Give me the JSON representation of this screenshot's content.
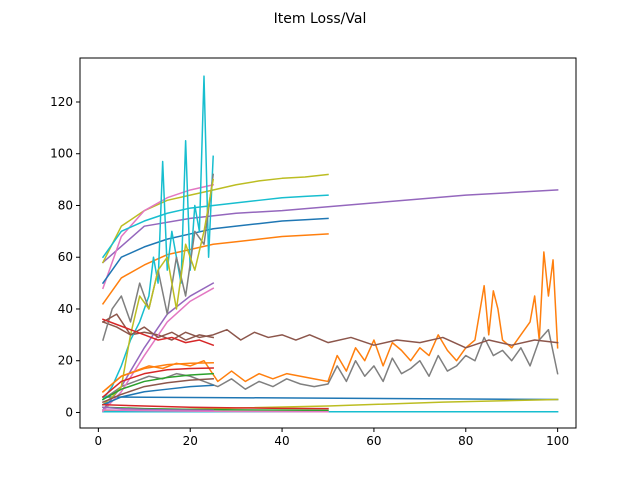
{
  "chart_data": {
    "type": "line",
    "title": "Item Loss/Val",
    "xlabel": "",
    "ylabel": "",
    "xlim": [
      -4,
      104
    ],
    "ylim": [
      -6,
      137
    ],
    "xticks": [
      0,
      20,
      40,
      60,
      80,
      100
    ],
    "yticks": [
      0,
      20,
      40,
      60,
      80,
      100,
      120
    ],
    "grid": false,
    "legend": "none",
    "series": [
      {
        "color": "#9467bd",
        "x": [
          1,
          10,
          20,
          30,
          40,
          50,
          60,
          70,
          80,
          90,
          100
        ],
        "y": [
          58,
          72,
          75,
          77,
          78,
          79.5,
          81,
          82.5,
          84,
          85,
          86
        ]
      },
      {
        "color": "#ff7f0e",
        "x": [
          1,
          5,
          8,
          11,
          14,
          17,
          20,
          23,
          26,
          29,
          32,
          35,
          38,
          41,
          44,
          47,
          50,
          52,
          54,
          56,
          58,
          60,
          62,
          64,
          66,
          68,
          70,
          72,
          74,
          76,
          78,
          80,
          82,
          84,
          85,
          86,
          87,
          88,
          90,
          92,
          94,
          95,
          96,
          97,
          98,
          99,
          100
        ],
        "y": [
          8,
          14,
          16,
          18,
          17,
          19,
          18,
          20,
          12,
          16,
          12,
          15,
          13,
          15,
          14,
          13,
          12,
          22,
          16,
          25,
          20,
          28,
          18,
          27,
          24,
          20,
          25,
          22,
          30,
          24,
          20,
          25,
          28,
          49,
          30,
          47,
          40,
          28,
          25,
          30,
          35,
          45,
          28,
          62,
          45,
          59,
          25
        ]
      },
      {
        "color": "#7f7f7f",
        "x": [
          1,
          5,
          8,
          11,
          14,
          17,
          20,
          23,
          26,
          29,
          32,
          35,
          38,
          41,
          44,
          47,
          50,
          52,
          54,
          56,
          58,
          60,
          62,
          64,
          66,
          68,
          70,
          72,
          74,
          76,
          78,
          80,
          82,
          84,
          86,
          88,
          90,
          92,
          94,
          96,
          98,
          100
        ],
        "y": [
          5,
          10,
          12,
          14,
          13,
          15,
          14,
          12,
          10,
          13,
          9,
          12,
          10,
          13,
          11,
          10,
          11,
          18,
          12,
          20,
          14,
          18,
          12,
          21,
          15,
          17,
          20,
          14,
          22,
          16,
          18,
          22,
          20,
          29,
          22,
          24,
          20,
          25,
          18,
          28,
          32,
          15
        ]
      },
      {
        "color": "#8c564b",
        "x": [
          1,
          4,
          7,
          10,
          13,
          16,
          19,
          22,
          25,
          28,
          31,
          34,
          37,
          40,
          43,
          46,
          50,
          55,
          60,
          65,
          70,
          75,
          80,
          85,
          90,
          95,
          100
        ],
        "y": [
          35,
          33,
          30,
          31,
          30,
          28,
          31,
          29,
          30,
          32,
          28,
          31,
          29,
          30,
          28,
          30,
          27,
          29,
          26,
          28,
          27,
          29,
          25,
          28,
          26,
          28,
          27
        ]
      },
      {
        "color": "#1f77b4",
        "x": [
          1,
          100
        ],
        "y": [
          6,
          5
        ]
      },
      {
        "color": "#bcbd22",
        "x": [
          1,
          25,
          50,
          75,
          100
        ],
        "y": [
          0.5,
          1.5,
          2.5,
          4,
          5
        ]
      },
      {
        "color": "#17becf",
        "x": [
          1,
          100
        ],
        "y": [
          0.3,
          0.3
        ]
      },
      {
        "color": "#bcbd22",
        "x": [
          1,
          5,
          10,
          15,
          20,
          25,
          30,
          35,
          40,
          45,
          50
        ],
        "y": [
          58,
          72,
          78,
          82,
          84,
          86,
          88,
          89.5,
          90.5,
          91,
          92
        ]
      },
      {
        "color": "#e377c2",
        "x": [
          1,
          5,
          10,
          15,
          20,
          25
        ],
        "y": [
          48,
          68,
          78,
          83,
          86,
          88
        ]
      },
      {
        "color": "#17becf",
        "x": [
          1,
          5,
          10,
          15,
          20,
          25,
          30,
          35,
          40,
          45,
          50
        ],
        "y": [
          60,
          70,
          74,
          77,
          79,
          80,
          81,
          82,
          83,
          83.5,
          84
        ]
      },
      {
        "color": "#1f77b4",
        "x": [
          1,
          5,
          10,
          15,
          20,
          25,
          30,
          35,
          40,
          45,
          50
        ],
        "y": [
          50,
          60,
          64,
          67,
          69,
          71,
          72,
          73,
          74,
          74.5,
          75
        ]
      },
      {
        "color": "#ff7f0e",
        "x": [
          1,
          5,
          10,
          15,
          20,
          25,
          30,
          35,
          40,
          45,
          50
        ],
        "y": [
          42,
          52,
          57,
          61,
          63,
          65,
          66,
          67,
          68,
          68.5,
          69
        ]
      },
      {
        "color": "#9467bd",
        "x": [
          1,
          5,
          10,
          15,
          20,
          25
        ],
        "y": [
          1,
          10,
          25,
          38,
          45,
          50
        ]
      },
      {
        "color": "#e377c2",
        "x": [
          1,
          5,
          10,
          15,
          20,
          25
        ],
        "y": [
          0.5,
          8,
          22,
          35,
          43,
          48
        ]
      },
      {
        "color": "#17becf",
        "x": [
          1,
          3,
          5,
          7,
          9,
          11,
          12,
          13,
          14,
          15,
          16,
          17,
          18,
          19,
          20,
          21,
          22,
          23,
          24,
          25
        ],
        "y": [
          5,
          10,
          18,
          28,
          35,
          45,
          60,
          50,
          97,
          55,
          70,
          60,
          50,
          105,
          55,
          80,
          70,
          130,
          60,
          99
        ]
      },
      {
        "color": "#7f7f7f",
        "x": [
          1,
          3,
          5,
          7,
          9,
          11,
          13,
          15,
          17,
          19,
          21,
          23,
          25
        ],
        "y": [
          28,
          40,
          45,
          35,
          50,
          40,
          55,
          38,
          60,
          45,
          70,
          65,
          92
        ]
      },
      {
        "color": "#bcbd22",
        "x": [
          1,
          3,
          5,
          7,
          9,
          11,
          13,
          15,
          17,
          19,
          21,
          23,
          25
        ],
        "y": [
          3,
          6,
          10,
          30,
          45,
          40,
          55,
          60,
          40,
          65,
          55,
          70,
          90
        ]
      },
      {
        "color": "#8c564b",
        "x": [
          1,
          4,
          7,
          10,
          13,
          16,
          19,
          22,
          25
        ],
        "y": [
          35,
          38,
          30,
          33,
          29,
          31,
          28,
          30,
          29
        ]
      },
      {
        "color": "#d62728",
        "x": [
          1,
          4,
          7,
          10,
          13,
          16,
          19,
          22,
          25
        ],
        "y": [
          36,
          34,
          32,
          30,
          28,
          29,
          27,
          28,
          26
        ]
      },
      {
        "color": "#ff7f0e",
        "x": [
          1,
          5,
          10,
          15,
          20,
          25
        ],
        "y": [
          8,
          14,
          17,
          18.5,
          19,
          19.2
        ]
      },
      {
        "color": "#d62728",
        "x": [
          1,
          5,
          10,
          15,
          20,
          25
        ],
        "y": [
          6,
          12,
          15,
          16.5,
          17,
          17.2
        ]
      },
      {
        "color": "#2ca02c",
        "x": [
          1,
          5,
          10,
          15,
          20,
          25
        ],
        "y": [
          5,
          9,
          12,
          13.5,
          14.5,
          15
        ]
      },
      {
        "color": "#8c564b",
        "x": [
          1,
          5,
          10,
          15,
          20,
          25
        ],
        "y": [
          4,
          7,
          10,
          11.5,
          12.5,
          13
        ]
      },
      {
        "color": "#1f77b4",
        "x": [
          1,
          5,
          10,
          15,
          20,
          25
        ],
        "y": [
          3,
          6,
          8,
          9,
          10,
          10.5
        ]
      },
      {
        "color": "#d62728",
        "x": [
          1,
          10,
          20,
          30,
          40,
          50
        ],
        "y": [
          3,
          2.5,
          2,
          1.8,
          1.6,
          1.5
        ]
      },
      {
        "color": "#2ca02c",
        "x": [
          1,
          10,
          20,
          30,
          40,
          50
        ],
        "y": [
          2,
          1.5,
          1.2,
          1,
          0.9,
          0.8
        ]
      },
      {
        "color": "#9467bd",
        "x": [
          1,
          5,
          10,
          15,
          20,
          25
        ],
        "y": [
          2,
          1.5,
          1.2,
          1,
          0.9,
          0.8
        ]
      },
      {
        "color": "#e377c2",
        "x": [
          1,
          10,
          20,
          30,
          40,
          50
        ],
        "y": [
          1,
          0.7,
          0.5,
          0.4,
          0.35,
          0.3
        ]
      }
    ]
  }
}
